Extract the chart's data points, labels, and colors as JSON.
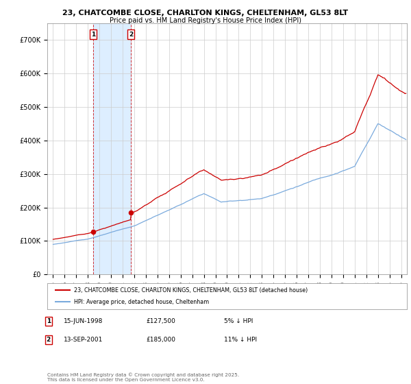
{
  "title": "23, CHATCOMBE CLOSE, CHARLTON KINGS, CHELTENHAM, GL53 8LT",
  "subtitle": "Price paid vs. HM Land Registry's House Price Index (HPI)",
  "legend_label_red": "23, CHATCOMBE CLOSE, CHARLTON KINGS, CHELTENHAM, GL53 8LT (detached house)",
  "legend_label_blue": "HPI: Average price, detached house, Cheltenham",
  "footnote": "Contains HM Land Registry data © Crown copyright and database right 2025.\nThis data is licensed under the Open Government Licence v3.0.",
  "transactions": [
    {
      "num": 1,
      "date": "15-JUN-1998",
      "price": 127500,
      "pct": "5% ↓ HPI"
    },
    {
      "num": 2,
      "date": "13-SEP-2001",
      "price": 185000,
      "pct": "11% ↓ HPI"
    }
  ],
  "transaction_dates_year": [
    1998.45,
    2001.71
  ],
  "red_color": "#cc0000",
  "blue_color": "#7aaadd",
  "shade_color": "#ddeeff",
  "ylim_min": 0,
  "ylim_max": 750000,
  "yticks": [
    0,
    100000,
    200000,
    300000,
    400000,
    500000,
    600000,
    700000
  ],
  "ytick_labels": [
    "£0",
    "£100K",
    "£200K",
    "£300K",
    "£400K",
    "£500K",
    "£600K",
    "£700K"
  ],
  "xlim_min": 1994.5,
  "xlim_max": 2025.5,
  "xticks": [
    1995,
    1996,
    1997,
    1998,
    1999,
    2000,
    2001,
    2002,
    2003,
    2004,
    2005,
    2006,
    2007,
    2008,
    2009,
    2010,
    2011,
    2012,
    2013,
    2014,
    2015,
    2016,
    2017,
    2018,
    2019,
    2020,
    2021,
    2022,
    2023,
    2024,
    2025
  ],
  "background_color": "#ffffff",
  "grid_color": "#cccccc"
}
